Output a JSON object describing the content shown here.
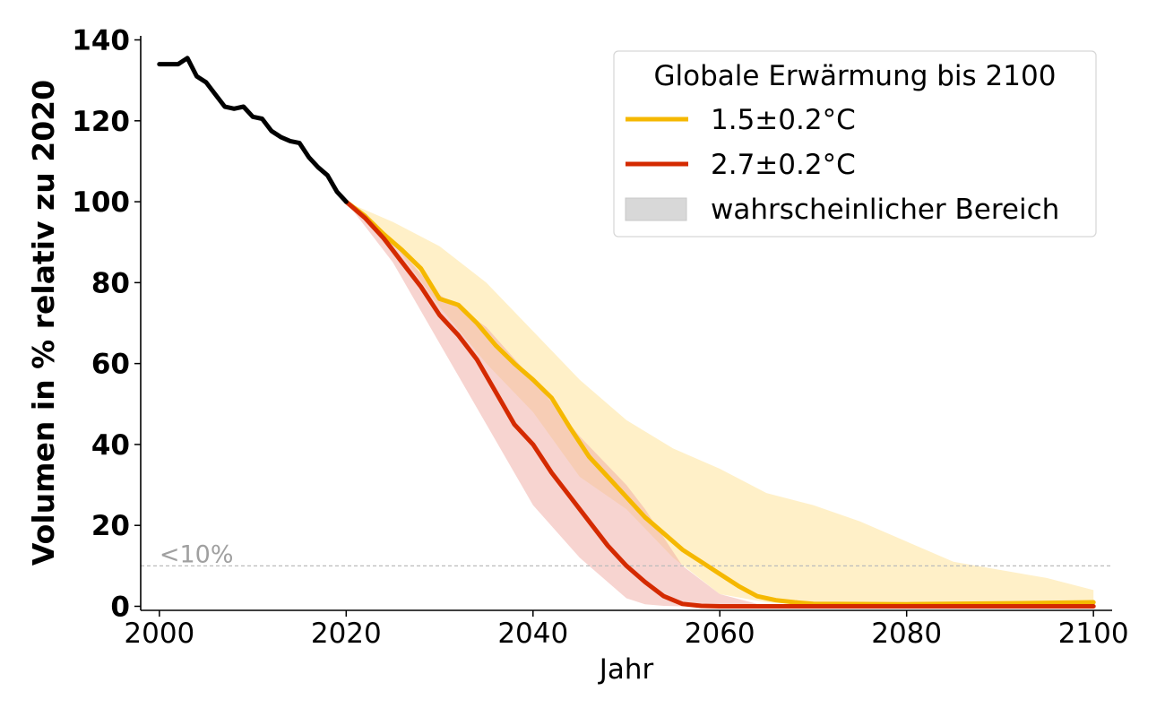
{
  "chart_data": {
    "type": "line",
    "xlabel": "Jahr",
    "ylabel": "Volumen in % relativ zu 2020",
    "xlim": [
      1998,
      2102
    ],
    "ylim": [
      -1,
      141
    ],
    "x_ticks": [
      2000,
      2020,
      2040,
      2060,
      2080,
      2100
    ],
    "y_ticks": [
      0,
      20,
      40,
      60,
      80,
      100,
      120,
      140
    ],
    "grid": false,
    "legend": {
      "title": "Globale Erwärmung bis 2100",
      "placement": "top-right",
      "entries": [
        "1.5±0.2°C",
        "2.7±0.2°C",
        "wahrscheinlicher Bereich"
      ]
    },
    "threshold": {
      "y": 10,
      "label": "<10%"
    },
    "colors": {
      "historical": "#000000",
      "scenario_15": "#f5b800",
      "scenario_15_band": "#fff0c8",
      "scenario_27": "#d42a00",
      "scenario_27_band": "#efa9a2",
      "range_legend": "#d8d8d8",
      "threshold": "#bbbbbb"
    },
    "historical": {
      "x": [
        2000,
        2001,
        2002,
        2003,
        2004,
        2005,
        2006,
        2007,
        2008,
        2009,
        2010,
        2011,
        2012,
        2013,
        2014,
        2015,
        2016,
        2017,
        2018,
        2019,
        2020
      ],
      "y": [
        134,
        134,
        134,
        135.5,
        131,
        129.5,
        126.5,
        123.5,
        123,
        123.5,
        121,
        120.5,
        117.5,
        116,
        115,
        114.5,
        111,
        108.5,
        106.5,
        102.5,
        100
      ]
    },
    "series": [
      {
        "name": "1.5±0.2°C",
        "x": [
          2020,
          2022,
          2024,
          2026,
          2028,
          2030,
          2032,
          2034,
          2036,
          2038,
          2040,
          2042,
          2044,
          2046,
          2048,
          2050,
          2052,
          2054,
          2056,
          2058,
          2060,
          2062,
          2064,
          2066,
          2068,
          2070,
          2080,
          2090,
          2100
        ],
        "y": [
          100,
          96.5,
          92,
          88,
          83.5,
          76,
          74.5,
          70,
          64.5,
          60,
          56,
          51.5,
          44,
          37,
          32,
          27,
          22,
          18,
          14,
          11,
          8,
          5,
          2.5,
          1.5,
          1,
          0.6,
          0.5,
          0.7,
          1
        ]
      },
      {
        "name": "2.7±0.2°C",
        "x": [
          2020,
          2022,
          2024,
          2026,
          2028,
          2030,
          2032,
          2034,
          2036,
          2038,
          2040,
          2042,
          2044,
          2046,
          2048,
          2050,
          2052,
          2054,
          2056,
          2058,
          2060,
          2070,
          2080,
          2090,
          2100
        ],
        "y": [
          100,
          96,
          91,
          85,
          79,
          72,
          67,
          61,
          53,
          45,
          40,
          33,
          27,
          21,
          15,
          10,
          6,
          2.5,
          0.6,
          0.1,
          0,
          0,
          0,
          0,
          0
        ]
      }
    ],
    "bands": [
      {
        "series": "1.5±0.2°C",
        "x": [
          2020,
          2025,
          2030,
          2035,
          2040,
          2045,
          2050,
          2055,
          2060,
          2065,
          2070,
          2075,
          2080,
          2085,
          2090,
          2095,
          2100
        ],
        "upper": [
          100,
          95,
          89,
          80,
          68,
          56,
          46,
          39,
          34,
          28,
          25,
          21,
          16,
          11,
          9,
          7,
          4
        ],
        "lower": [
          100,
          90,
          74,
          60,
          48,
          32,
          24,
          12,
          3,
          1,
          0.3,
          0.2,
          0.2,
          0.2,
          0.2,
          0.2,
          0.2
        ]
      },
      {
        "series": "2.7±0.2°C",
        "x": [
          2020,
          2025,
          2030,
          2035,
          2040,
          2045,
          2050,
          2052,
          2054,
          2056,
          2060,
          2065
        ],
        "upper": [
          100,
          90,
          77,
          69,
          56,
          42,
          30,
          24,
          17,
          10,
          3,
          0
        ],
        "lower": [
          100,
          85,
          65,
          45,
          25,
          12,
          2,
          0.5,
          0.1,
          0,
          0,
          0
        ]
      }
    ]
  }
}
